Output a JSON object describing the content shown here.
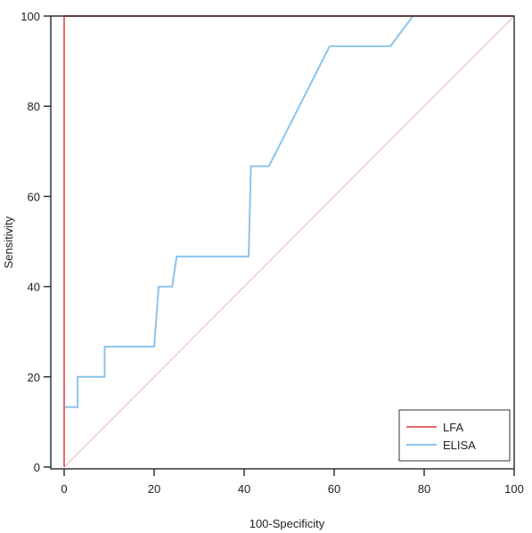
{
  "chart_data": {
    "type": "line",
    "title": "",
    "xlabel": "100-Specificity",
    "ylabel": "Sensitivity",
    "xlim": [
      0,
      100
    ],
    "ylim": [
      0,
      100
    ],
    "x_ticks": [
      "0",
      "20",
      "40",
      "60",
      "80",
      "100"
    ],
    "y_ticks": [
      "0",
      "20",
      "40",
      "60",
      "80",
      "100"
    ],
    "grid": false,
    "legend_position": "bottom-right",
    "series": [
      {
        "name": "LFA",
        "color": "#e8696b",
        "x": [
          0,
          0,
          0,
          77.5,
          100
        ],
        "y": [
          0,
          13,
          100,
          100,
          100
        ]
      },
      {
        "name": "ELISA",
        "color": "#8cc4ec",
        "x": [
          0,
          0,
          3,
          3,
          9,
          9,
          20,
          21,
          24,
          25,
          41,
          41.5,
          45.5,
          59,
          72.5,
          77.5,
          100
        ],
        "y": [
          0,
          13.3,
          13.3,
          20,
          20,
          26.7,
          26.7,
          40,
          40,
          46.7,
          46.7,
          66.7,
          66.7,
          93.3,
          93.3,
          100,
          100
        ]
      }
    ],
    "reference_line": {
      "color": "#e8b4b8",
      "x": [
        0,
        100
      ],
      "y": [
        0,
        100
      ]
    }
  }
}
